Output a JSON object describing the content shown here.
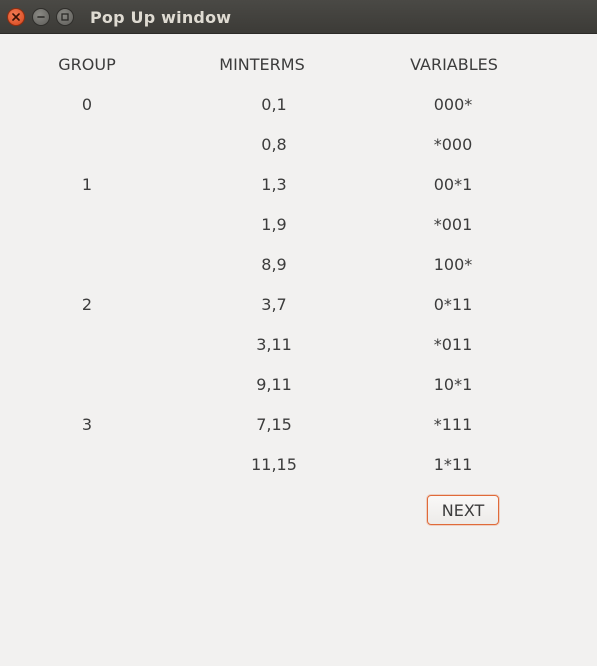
{
  "window": {
    "title": "Pop Up window"
  },
  "icons": {
    "close": "close-icon",
    "minimize": "minimize-icon",
    "maximize": "maximize-icon"
  },
  "colors": {
    "titlebar": "#3c3b37",
    "close_button": "#e95420",
    "background": "#f2f1f0",
    "button_border": "#e06a39",
    "text": "#3c3c3c"
  },
  "table": {
    "headers": {
      "group": "GROUP",
      "minterms": "MINTERMS",
      "variables": "VARIABLES"
    },
    "rows": [
      {
        "group": "0",
        "minterms": "0,1",
        "variables": "000*"
      },
      {
        "group": "",
        "minterms": "0,8",
        "variables": "*000"
      },
      {
        "group": "1",
        "minterms": "1,3",
        "variables": "00*1"
      },
      {
        "group": "",
        "minterms": "1,9",
        "variables": "*001"
      },
      {
        "group": "",
        "minterms": "8,9",
        "variables": "100*"
      },
      {
        "group": "2",
        "minterms": "3,7",
        "variables": "0*11"
      },
      {
        "group": "",
        "minterms": "3,11",
        "variables": "*011"
      },
      {
        "group": "",
        "minterms": "9,11",
        "variables": "10*1"
      },
      {
        "group": "3",
        "minterms": "7,15",
        "variables": "*111"
      },
      {
        "group": "",
        "minterms": "11,15",
        "variables": "1*11"
      }
    ]
  },
  "buttons": {
    "next_label": "NEXT"
  }
}
